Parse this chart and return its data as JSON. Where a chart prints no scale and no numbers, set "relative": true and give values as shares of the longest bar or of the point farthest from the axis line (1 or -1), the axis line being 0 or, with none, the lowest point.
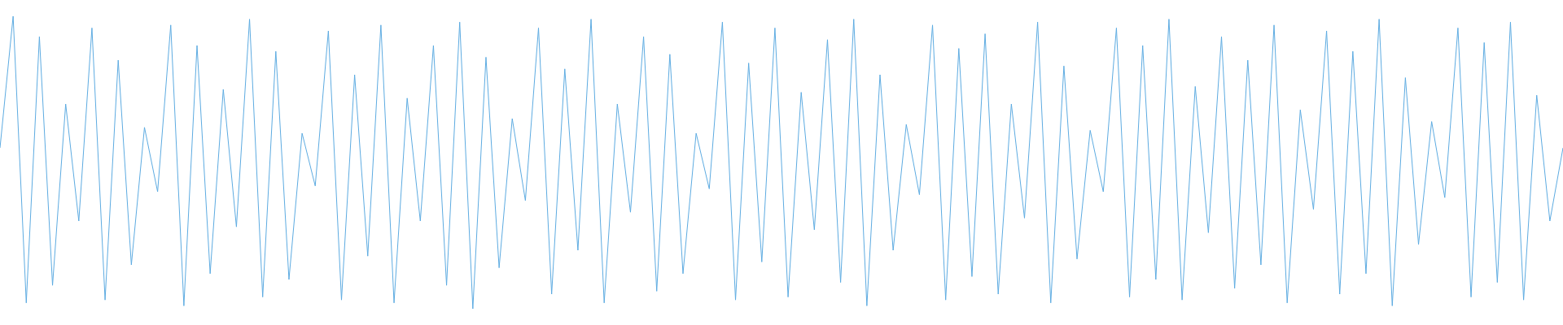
{
  "chart_data": {
    "type": "line",
    "relative": true,
    "legend": false,
    "marker": "none",
    "line_style": "solid",
    "categories": [
      null,
      null,
      null,
      null,
      null,
      null,
      null,
      null,
      null,
      null,
      null,
      null,
      null,
      null,
      null,
      null,
      null,
      null,
      null,
      null,
      null,
      null,
      null,
      null,
      null,
      null,
      null,
      null,
      null,
      null,
      null,
      null,
      null,
      null,
      null,
      null,
      null,
      null,
      null,
      null,
      null,
      null,
      null,
      null,
      null,
      null,
      null,
      null,
      null,
      null,
      null,
      null,
      null,
      null,
      null,
      null,
      null,
      null,
      null,
      null,
      null,
      null,
      null,
      null,
      null,
      null,
      null,
      null,
      null,
      null,
      null,
      null,
      null,
      null,
      null,
      null,
      null,
      null,
      null,
      null,
      null,
      null,
      null,
      null,
      null,
      null,
      null,
      null,
      null,
      null,
      null,
      null,
      null,
      null,
      null,
      null,
      null,
      null,
      null,
      null,
      null,
      null,
      null,
      null,
      null,
      null,
      null,
      null,
      null,
      null,
      null,
      null,
      null,
      null,
      null,
      null,
      null,
      null,
      null,
      null
    ],
    "series": [
      {
        "color": "#5dabe1",
        "values": [
          0.55,
          1.0,
          0.02,
          0.93,
          0.08,
          0.7,
          0.3,
          0.96,
          0.03,
          0.85,
          0.15,
          0.62,
          0.4,
          0.97,
          0.01,
          0.9,
          0.12,
          0.75,
          0.28,
          0.99,
          0.04,
          0.88,
          0.1,
          0.6,
          0.42,
          0.95,
          0.03,
          0.8,
          0.18,
          0.97,
          0.02,
          0.72,
          0.3,
          0.9,
          0.08,
          0.98,
          0.0,
          0.86,
          0.14,
          0.65,
          0.37,
          0.96,
          0.05,
          0.82,
          0.2,
          0.99,
          0.02,
          0.7,
          0.33,
          0.93,
          0.06,
          0.87,
          0.12,
          0.6,
          0.41,
          0.98,
          0.03,
          0.84,
          0.16,
          0.96,
          0.04,
          0.74,
          0.27,
          0.92,
          0.09,
          0.99,
          0.01,
          0.8,
          0.2,
          0.63,
          0.39,
          0.97,
          0.03,
          0.89,
          0.11,
          0.94,
          0.05,
          0.7,
          0.31,
          0.98,
          0.02,
          0.83,
          0.17,
          0.61,
          0.4,
          0.96,
          0.04,
          0.9,
          0.1,
          0.99,
          0.03,
          0.76,
          0.26,
          0.93,
          0.07,
          0.85,
          0.15,
          0.97,
          0.02,
          0.68,
          0.34,
          0.95,
          0.05,
          0.88,
          0.12,
          0.99,
          0.01,
          0.79,
          0.22,
          0.64,
          0.38,
          0.96,
          0.04,
          0.91,
          0.09,
          0.98,
          0.03,
          0.73,
          0.3,
          0.55
        ]
      }
    ]
  }
}
